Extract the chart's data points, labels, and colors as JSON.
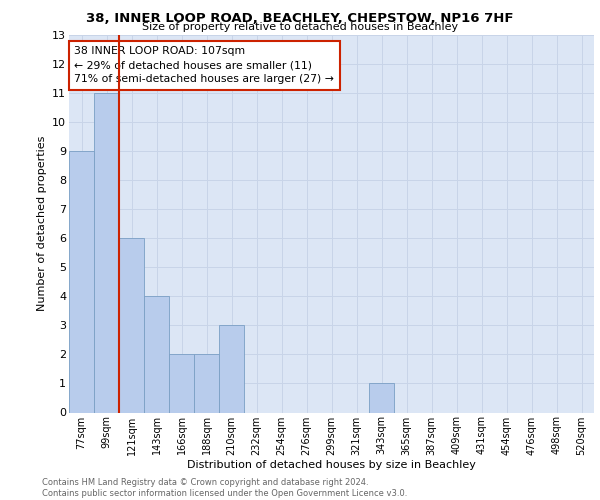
{
  "title": "38, INNER LOOP ROAD, BEACHLEY, CHEPSTOW, NP16 7HF",
  "subtitle": "Size of property relative to detached houses in Beachley",
  "xlabel": "Distribution of detached houses by size in Beachley",
  "ylabel": "Number of detached properties",
  "bar_labels": [
    "77sqm",
    "99sqm",
    "121sqm",
    "143sqm",
    "166sqm",
    "188sqm",
    "210sqm",
    "232sqm",
    "254sqm",
    "276sqm",
    "299sqm",
    "321sqm",
    "343sqm",
    "365sqm",
    "387sqm",
    "409sqm",
    "431sqm",
    "454sqm",
    "476sqm",
    "498sqm",
    "520sqm"
  ],
  "bar_values": [
    9,
    11,
    6,
    4,
    2,
    2,
    3,
    0,
    0,
    0,
    0,
    0,
    1,
    0,
    0,
    0,
    0,
    0,
    0,
    0,
    0
  ],
  "bar_color": "#b8ccec",
  "bar_edge_color": "#7a9fc4",
  "grid_color": "#c8d4e8",
  "bg_color": "#dce6f5",
  "vline_color": "#cc2200",
  "annotation_text": "38 INNER LOOP ROAD: 107sqm\n← 29% of detached houses are smaller (11)\n71% of semi-detached houses are larger (27) →",
  "annotation_box_color": "#ffffff",
  "annotation_box_edge": "#cc2200",
  "ylim": [
    0,
    13
  ],
  "yticks": [
    0,
    1,
    2,
    3,
    4,
    5,
    6,
    7,
    8,
    9,
    10,
    11,
    12,
    13
  ],
  "footer": "Contains HM Land Registry data © Crown copyright and database right 2024.\nContains public sector information licensed under the Open Government Licence v3.0."
}
